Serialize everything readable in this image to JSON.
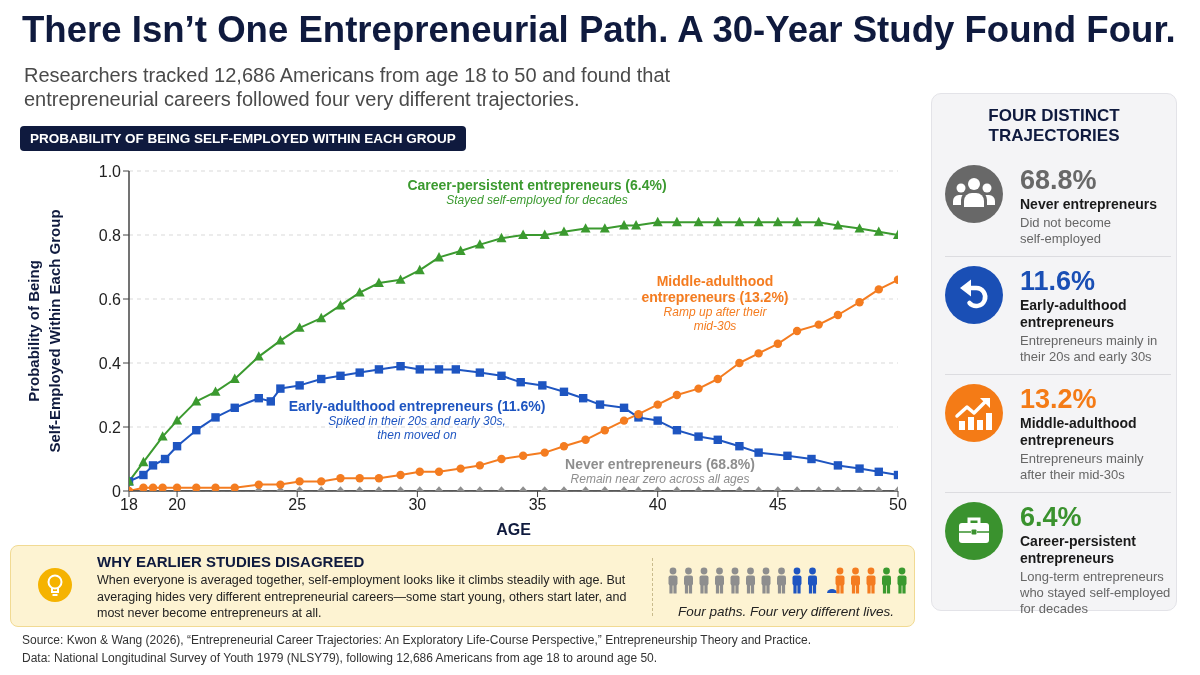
{
  "chart_data": [
    {
      "type": "line",
      "title": "There Isn’t One Entrepreneurial Path. A 30-Year Study Found Four.",
      "subtitle": "Researchers tracked 12,686 Americans from age 18 to 50 and found that entrepreneurial careers followed four very different trajectories.",
      "xlabel": "AGE",
      "ylabel": "Probability of Being Self-Employed Within Each Group",
      "xlim": [
        18,
        50
      ],
      "xticks": [
        18,
        20,
        25,
        30,
        35,
        40,
        45,
        50
      ],
      "ylim": [
        0,
        1
      ],
      "yticks": [
        0,
        0.2,
        0.4,
        0.6,
        0.8,
        {
          "value": 1,
          "label": "1.0"
        }
      ],
      "grid": "y",
      "line_style": "solid",
      "series": [
        {
          "name": "Never entrepreneurs (68.8%)",
          "color": "#8e8e8e",
          "marker": "diamond",
          "x": [
            18.0,
            18.6,
            19.0,
            19.4,
            20.0,
            20.8,
            21.6,
            22.4,
            23.4,
            24.3,
            25.1,
            26.0,
            26.8,
            27.6,
            28.4,
            29.3,
            30.1,
            30.9,
            31.8,
            32.6,
            33.5,
            34.4,
            35.3,
            36.1,
            37.0,
            37.8,
            38.6,
            39.2,
            40.0,
            40.8,
            41.7,
            42.5,
            43.4,
            44.2,
            45.0,
            45.8,
            46.7,
            47.5,
            48.4,
            49.2,
            50.0
          ],
          "values": [
            0,
            0,
            0,
            0,
            0,
            0,
            0,
            0,
            0,
            0,
            0,
            0,
            0,
            0,
            0,
            0,
            0,
            0,
            0,
            0,
            0,
            0,
            0,
            0,
            0,
            0,
            0,
            0,
            0,
            0,
            0,
            0,
            0,
            0,
            0,
            0,
            0,
            0,
            0,
            0,
            0
          ]
        },
        {
          "name": "Early-adulthood entrepreneurs (11.6%)",
          "color": "#1e55c1",
          "marker": "square",
          "x": [
            18.0,
            18.6,
            19.0,
            19.5,
            20.0,
            20.8,
            21.6,
            22.4,
            23.4,
            23.9,
            24.3,
            25.1,
            26.0,
            26.8,
            27.6,
            28.4,
            29.3,
            30.1,
            30.9,
            31.6,
            32.6,
            33.5,
            34.3,
            35.2,
            36.1,
            36.9,
            37.6,
            38.6,
            39.2,
            40.0,
            40.8,
            41.7,
            42.5,
            43.4,
            44.2,
            45.4,
            46.4,
            47.5,
            48.4,
            49.2,
            50.0
          ],
          "values": [
            0.03,
            0.05,
            0.08,
            0.1,
            0.14,
            0.19,
            0.23,
            0.26,
            0.29,
            0.28,
            0.32,
            0.33,
            0.35,
            0.36,
            0.37,
            0.38,
            0.39,
            0.38,
            0.38,
            0.38,
            0.37,
            0.36,
            0.34,
            0.33,
            0.31,
            0.29,
            0.27,
            0.26,
            0.23,
            0.22,
            0.19,
            0.17,
            0.16,
            0.14,
            0.12,
            0.11,
            0.1,
            0.08,
            0.07,
            0.06,
            0.05
          ]
        },
        {
          "name": "Middle-adulthood entrepreneurs (13.2%)",
          "color": "#f47c20",
          "marker": "circle",
          "x": [
            18.0,
            18.6,
            19.0,
            19.4,
            20.0,
            20.8,
            21.6,
            22.4,
            23.4,
            24.3,
            25.1,
            26.0,
            26.8,
            27.6,
            28.4,
            29.3,
            30.1,
            30.9,
            31.8,
            32.6,
            33.5,
            34.4,
            35.3,
            36.1,
            37.0,
            37.8,
            38.6,
            39.2,
            40.0,
            40.8,
            41.7,
            42.5,
            43.4,
            44.2,
            45.0,
            45.8,
            46.7,
            47.5,
            48.4,
            49.2,
            50.0
          ],
          "values": [
            0.0,
            0.01,
            0.01,
            0.01,
            0.01,
            0.01,
            0.01,
            0.01,
            0.02,
            0.02,
            0.03,
            0.03,
            0.04,
            0.04,
            0.04,
            0.05,
            0.06,
            0.06,
            0.07,
            0.08,
            0.1,
            0.11,
            0.12,
            0.14,
            0.16,
            0.19,
            0.22,
            0.24,
            0.27,
            0.3,
            0.32,
            0.35,
            0.4,
            0.43,
            0.46,
            0.5,
            0.52,
            0.55,
            0.59,
            0.63,
            0.66
          ]
        },
        {
          "name": "Career-persistent entrepreneurs (6.4%)",
          "color": "#3b9a2f",
          "marker": "triangle",
          "x": [
            18.0,
            18.6,
            19.4,
            20.0,
            20.8,
            21.6,
            22.4,
            23.4,
            24.3,
            25.1,
            26.0,
            26.8,
            27.6,
            28.4,
            29.3,
            30.1,
            30.9,
            31.8,
            32.6,
            33.5,
            34.4,
            35.3,
            36.1,
            37.0,
            37.8,
            38.6,
            39.1,
            40.0,
            40.8,
            41.7,
            42.5,
            43.4,
            44.2,
            45.0,
            45.8,
            46.7,
            47.5,
            48.4,
            49.2,
            50.0
          ],
          "values": [
            0.03,
            0.09,
            0.17,
            0.22,
            0.28,
            0.31,
            0.35,
            0.42,
            0.47,
            0.51,
            0.54,
            0.58,
            0.62,
            0.65,
            0.66,
            0.69,
            0.73,
            0.75,
            0.77,
            0.79,
            0.8,
            0.8,
            0.81,
            0.82,
            0.82,
            0.83,
            0.83,
            0.84,
            0.84,
            0.84,
            0.84,
            0.84,
            0.84,
            0.84,
            0.84,
            0.84,
            0.83,
            0.82,
            0.81,
            0.8
          ]
        }
      ],
      "annotations": [
        "PROBABILITY OF BEING SELF-EMPLOYED WITHIN EACH GROUP",
        "Remain near zero across all ages",
        "Spiked in their 20s and early 30s, then moved on",
        "Ramp up after their mid-30s",
        "Stayed self-employed for decades",
        "Source: Kwon & Wang (2026), “Entrepreneurial Career Trajectories: An Exploratory Life-Course Perspective,” Entrepreneurship Theory and Practice.",
        "Data: National Longitudinal Survey of Youth 1979 (NLSY79), following 12,686 Americans from age 18 to around age 50."
      ]
    },
    {
      "type": "other",
      "title": "FOUR DISTINCT TRAJECTORIES",
      "colors": [
        "#686868",
        "#1a4fb5",
        "#f47b16",
        "#3a922e"
      ],
      "annotations": [
        "68.8%",
        "Never entrepreneurs",
        "Did not become self-employed",
        "11.6%",
        "Early-adulthood entrepreneurs",
        "Entrepreneurs mainly in their 20s and early 30s",
        "13.2%",
        "Middle-adulthood entrepreneurs",
        "Entrepreneurs mainly after their mid-30s",
        "6.4%",
        "Career-persistent entrepreneurs",
        "Long-term entrepreneurs who stayed self-employed for decades"
      ]
    },
    {
      "type": "other",
      "title": "WHY EARLIER STUDIES DISAGREED",
      "annotations": [
        "When everyone is averaged together, self-employment looks like it climbs steadily with age. But averaging hides very different entrepreneurial careers—some start young, others start later, and most never become entrepreneurs at all.",
        "Four paths. Four very different lives."
      ]
    }
  ]
}
